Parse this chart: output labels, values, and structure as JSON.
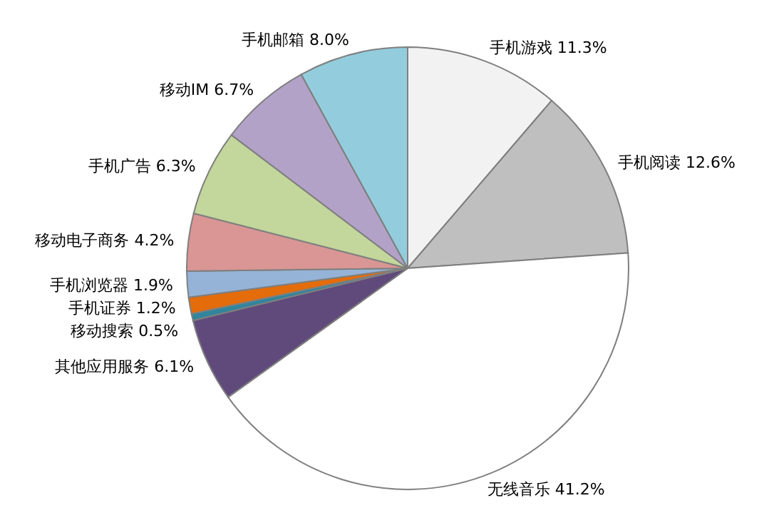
{
  "chart_data": {
    "type": "pie",
    "categories": [
      "手机游戏",
      "手机阅读",
      "无线音乐",
      "其他应用服务",
      "移动搜索",
      "手机证券",
      "手机浏览器",
      "移动电子商务",
      "手机广告",
      "移动IM",
      "手机邮箱"
    ],
    "values": [
      11.3,
      12.6,
      41.2,
      6.1,
      0.5,
      1.2,
      1.9,
      4.2,
      6.3,
      6.7,
      8.0
    ],
    "value_labels": [
      "11.3%",
      "12.6%",
      "41.2%",
      "6.1%",
      "0.5%",
      "1.2%",
      "1.9%",
      "4.2%",
      "6.3%",
      "6.7%",
      "8.0%"
    ],
    "colors": [
      "#f2f2f2",
      "#bfbfbf",
      "#ffffff",
      "#604a7b",
      "#31859c",
      "#e46c0a",
      "#95b3d7",
      "#d99694",
      "#c3d69b",
      "#b3a2c7",
      "#93cddd"
    ],
    "legend": false
  }
}
